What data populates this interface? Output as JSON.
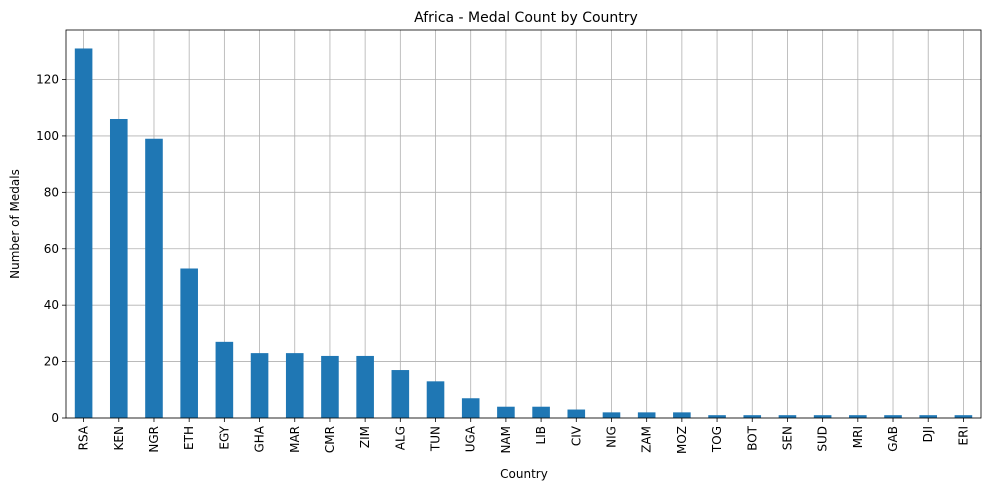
{
  "chart_data": {
    "type": "bar",
    "title": "Africa - Medal Count by Country",
    "xlabel": "Country",
    "ylabel": "Number of Medals",
    "categories": [
      "RSA",
      "KEN",
      "NGR",
      "ETH",
      "EGY",
      "GHA",
      "MAR",
      "CMR",
      "ZIM",
      "ALG",
      "TUN",
      "UGA",
      "NAM",
      "LIB",
      "CIV",
      "NIG",
      "ZAM",
      "MOZ",
      "TOG",
      "BOT",
      "SEN",
      "SUD",
      "MRI",
      "GAB",
      "DJI",
      "ERI"
    ],
    "values": [
      131,
      106,
      99,
      53,
      27,
      23,
      23,
      22,
      22,
      17,
      13,
      7,
      4,
      4,
      3,
      2,
      2,
      2,
      1,
      1,
      1,
      1,
      1,
      1,
      1,
      1
    ],
    "ylim": [
      0,
      137.55
    ],
    "yticks": [
      0,
      20,
      40,
      60,
      80,
      100,
      120
    ],
    "grid": true,
    "bar_color": "#1f77b4",
    "grid_color": "#b0b0b0"
  }
}
